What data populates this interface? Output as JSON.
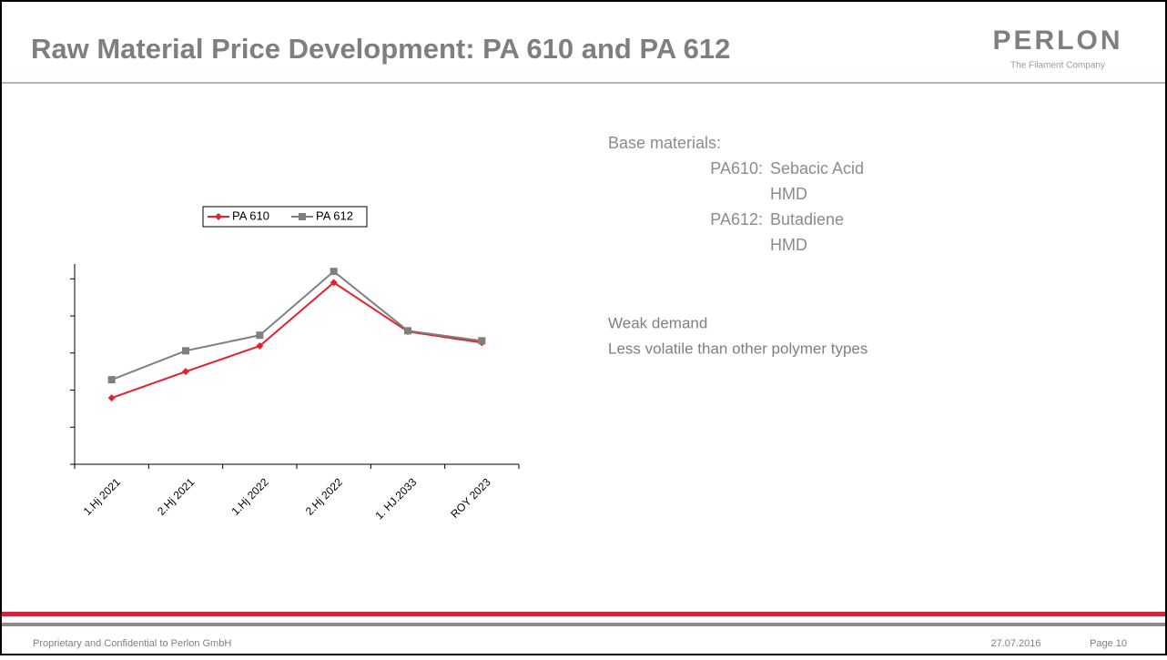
{
  "header": {
    "title": "Raw Material Price Development: PA 610 and PA 612",
    "logo": "PERLON",
    "logo_tagline": "The Filament Company"
  },
  "chart_data": {
    "type": "line",
    "categories": [
      "1.Hj 2021",
      "2.Hj 2021",
      "1.Hj 2022",
      "2.Hj 2022",
      "1. HJ.2033",
      "ROY 2023"
    ],
    "series": [
      {
        "name": "PA 610",
        "color": "#e8202e",
        "marker": "diamond",
        "values": [
          1.79,
          2.5,
          3.19,
          4.9,
          3.58,
          3.28
        ]
      },
      {
        "name": "PA 612",
        "color": "#7f7f7f",
        "marker": "square",
        "values": [
          2.28,
          3.06,
          3.48,
          5.2,
          3.6,
          3.33
        ]
      }
    ],
    "ylim": [
      0,
      5.4
    ],
    "yticks": [
      0,
      1,
      2,
      3,
      4,
      5
    ],
    "grid": false,
    "legend": "top"
  },
  "notes": {
    "heading": "Base materials:",
    "items": [
      {
        "label": "PA610:",
        "lines": [
          "Sebacic Acid",
          "HMD"
        ]
      },
      {
        "label": "PA612:",
        "lines": [
          "Butadiene",
          "HMD"
        ]
      }
    ],
    "bullets": [
      "Weak demand",
      "Less volatile than other polymer types"
    ]
  },
  "footer": {
    "left": "Proprietary and Confidential to Perlon GmbH",
    "date": "27.07.2016",
    "page": "Page 10"
  }
}
